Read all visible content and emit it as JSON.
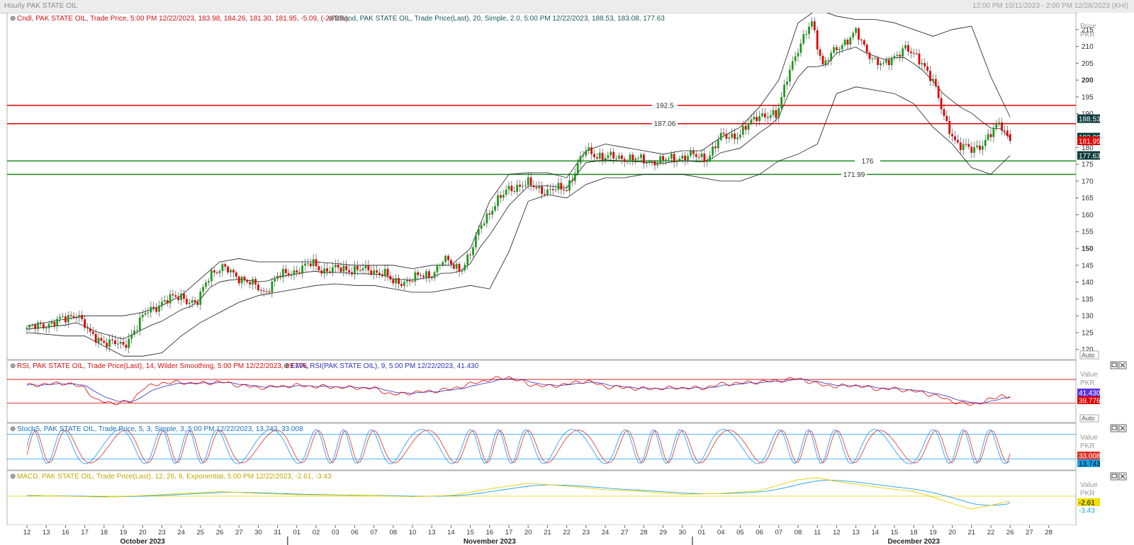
{
  "window": {
    "title": "Hourly PAK STATE OIL",
    "range_text": "12:00 PM 10/11/2023 - 2:00 PM 12/28/2023 (KHI)"
  },
  "colors": {
    "up": "#1a9c1a",
    "down": "#e00000",
    "band": "#1a1a1a",
    "resistance": "#e00000",
    "support": "#1a8c1a",
    "rsi": "#e00000",
    "rsi_ema": "#3030c0",
    "stoch_k": "#1e90ff",
    "stoch_d": "#e03020",
    "macd": "#e8d000",
    "macd_signal": "#1ca0e8"
  },
  "main_panel": {
    "legend_cndl": "Cndl, PAK STATE OIL, Trade Price, 5:00 PM 12/22/2023, 183.98, 184.26, 181.30, 181.95, -5.09, (-2.72%),",
    "legend_bband": "BBand, PAK STATE OIL, Trade Price(Last), 20, Simple, 2.0, 5:00 PM 12/22/2023, 188.53, 183.08, 177.63",
    "axis_title": "Price",
    "axis_unit": "PKR",
    "auto_label": "Auto",
    "ticks": [
      {
        "v": 215,
        "label": "215",
        "bold": false
      },
      {
        "v": 210,
        "label": "210",
        "bold": false
      },
      {
        "v": 205,
        "label": "205",
        "bold": false
      },
      {
        "v": 200,
        "label": "200",
        "bold": true
      },
      {
        "v": 195,
        "label": "195",
        "bold": false
      },
      {
        "v": 190,
        "label": "190",
        "bold": false
      },
      {
        "v": 180,
        "label": "180",
        "bold": false
      },
      {
        "v": 175,
        "label": "175",
        "bold": false
      },
      {
        "v": 170,
        "label": "170",
        "bold": false
      },
      {
        "v": 165,
        "label": "165",
        "bold": false
      },
      {
        "v": 160,
        "label": "160",
        "bold": false
      },
      {
        "v": 155,
        "label": "155",
        "bold": false
      },
      {
        "v": 150,
        "label": "150",
        "bold": true
      },
      {
        "v": 145,
        "label": "145",
        "bold": false
      },
      {
        "v": 140,
        "label": "140",
        "bold": false
      },
      {
        "v": 135,
        "label": "135",
        "bold": false
      },
      {
        "v": 130,
        "label": "130",
        "bold": false
      },
      {
        "v": 125,
        "label": "125",
        "bold": false
      },
      {
        "v": 120,
        "label": "120",
        "bold": false
      }
    ],
    "value_tags": [
      {
        "v": 188.53,
        "label": "188.53",
        "bg": "#0d3b3b",
        "fg": "#ffffff"
      },
      {
        "v": 183.08,
        "label": "183.08",
        "bg": "#0d3b3b",
        "fg": "#ffffff"
      },
      {
        "v": 181.95,
        "label": "181.95",
        "bg": "#e00000",
        "fg": "#ffffff"
      },
      {
        "v": 177.63,
        "label": "177.63",
        "bg": "#0d3b3b",
        "fg": "#ffffff"
      }
    ],
    "levels": [
      {
        "v": 192.5,
        "label": "192.5",
        "color": "#e00000"
      },
      {
        "v": 187.06,
        "label": "187.06",
        "color": "#e00000"
      },
      {
        "v": 176,
        "label": "176",
        "color": "#1a8c1a"
      },
      {
        "v": 171.99,
        "label": "171.99",
        "color": "#1a8c1a"
      }
    ]
  },
  "rsi_panel": {
    "legend_rsi": "RSI, PAK STATE OIL, Trade Price(Last), 14, Wilder Smoothing, 5:00 PM 12/22/2023, 39.776,",
    "legend_ema": "EMA, RSI(PAK STATE OIL), 9, 5:00 PM 12/22/2023, 41.430",
    "axis_title": "Value",
    "axis_unit": "PKR",
    "auto_label": "Auto",
    "tags": [
      {
        "label": "41.430",
        "bg": "#5a32e0",
        "fg": "#ffffff"
      },
      {
        "label": "39.776",
        "bg": "#e00000",
        "fg": "#ffffff"
      }
    ],
    "levels": [
      70,
      30
    ]
  },
  "stoch_panel": {
    "legend": "StochS, PAK STATE OIL, Trade Price, 5, 3, Simple, 3, 5:00 PM 12/22/2023, 13.743, 33.008",
    "axis_title": "Value",
    "axis_unit": "PKR",
    "auto_label": "Auto",
    "tags": [
      {
        "label": "33.008",
        "bg": "#e03020",
        "fg": "#ffffff"
      },
      {
        "label": "13.743",
        "bg": "#1ca0e8",
        "fg": "#000000"
      }
    ],
    "levels": [
      80,
      20
    ]
  },
  "macd_panel": {
    "legend": "MACD, PAK STATE OIL, Trade Price(Last), 12, 26, 9, Exponential, 5:00 PM 12/22/2023, -2.61, -3.43",
    "axis_title": "Value",
    "axis_unit": "PKR",
    "tags": [
      {
        "label": "-2.61",
        "bg": "#f0e000",
        "fg": "#000000"
      },
      {
        "label": "-3.43",
        "bg": "#ffffff",
        "fg": "#1ca0e8"
      }
    ]
  },
  "x_axis": {
    "day_labels": [
      "12",
      "13",
      "16",
      "17",
      "18",
      "19",
      "20",
      "23",
      "24",
      "25",
      "26",
      "27",
      "30",
      "31",
      "01",
      "02",
      "03",
      "06",
      "07",
      "08",
      "10",
      "13",
      "14",
      "15",
      "16",
      "17",
      "20",
      "21",
      "22",
      "23",
      "24",
      "27",
      "28",
      "29",
      "30",
      "01",
      "04",
      "05",
      "06",
      "07",
      "08",
      "11",
      "12",
      "13",
      "14",
      "15",
      "18",
      "19",
      "20",
      "21",
      "22",
      "26",
      "27",
      "28"
    ],
    "months": [
      {
        "label": "October 2023",
        "day_index": 6
      },
      {
        "label": "November 2023",
        "day_index": 24
      },
      {
        "label": "December 2023",
        "day_index": 46
      }
    ],
    "separators": [
      14,
      35
    ]
  },
  "chart_data": {
    "type": "candlestick",
    "title": "Hourly PAK STATE OIL",
    "ylabel": "Price (PKR)",
    "ylim": [
      117,
      220
    ],
    "x_unit": "trading day (hourly bars)",
    "categories": [
      "Oct 12",
      "Oct 13",
      "Oct 16",
      "Oct 17",
      "Oct 18",
      "Oct 19",
      "Oct 20",
      "Oct 23",
      "Oct 24",
      "Oct 25",
      "Oct 26",
      "Oct 27",
      "Oct 30",
      "Oct 31",
      "Nov 01",
      "Nov 02",
      "Nov 03",
      "Nov 06",
      "Nov 07",
      "Nov 08",
      "Nov 10",
      "Nov 13",
      "Nov 14",
      "Nov 15",
      "Nov 16",
      "Nov 17",
      "Nov 20",
      "Nov 21",
      "Nov 22",
      "Nov 23",
      "Nov 24",
      "Nov 27",
      "Nov 28",
      "Nov 29",
      "Nov 30",
      "Dec 01",
      "Dec 04",
      "Dec 05",
      "Dec 06",
      "Dec 07",
      "Dec 08",
      "Dec 11",
      "Dec 12",
      "Dec 13",
      "Dec 14",
      "Dec 15",
      "Dec 18",
      "Dec 19",
      "Dec 20",
      "Dec 21",
      "Dec 22"
    ],
    "price_path": [
      [
        0,
        126
      ],
      [
        1,
        127.5
      ],
      [
        2,
        129
      ],
      [
        2.6,
        131
      ],
      [
        3.3,
        124
      ],
      [
        4.3,
        122
      ],
      [
        5,
        121
      ],
      [
        5.6,
        126
      ],
      [
        6.2,
        131
      ],
      [
        7,
        134
      ],
      [
        8,
        136
      ],
      [
        8.8,
        133
      ],
      [
        9.5,
        143
      ],
      [
        10.2,
        144
      ],
      [
        11.2,
        141
      ],
      [
        12.3,
        137
      ],
      [
        13,
        141.5
      ],
      [
        14,
        143.5
      ],
      [
        14.8,
        145.5
      ],
      [
        15.4,
        143.5
      ],
      [
        16.5,
        144
      ],
      [
        17.5,
        143.5
      ],
      [
        18.5,
        143
      ],
      [
        19,
        139.5
      ],
      [
        20,
        141
      ],
      [
        21,
        142.5
      ],
      [
        21.6,
        146.5
      ],
      [
        22.5,
        144
      ],
      [
        23,
        148
      ],
      [
        23.6,
        158
      ],
      [
        24.3,
        163
      ],
      [
        25,
        168
      ],
      [
        26,
        169
      ],
      [
        27,
        167
      ],
      [
        28,
        168
      ],
      [
        28.6,
        175
      ],
      [
        29,
        179
      ],
      [
        30,
        177
      ],
      [
        31,
        177
      ],
      [
        32,
        176
      ],
      [
        33,
        176
      ],
      [
        33.7,
        177
      ],
      [
        34.3,
        177.5
      ],
      [
        35.3,
        177
      ],
      [
        36,
        183
      ],
      [
        37,
        184
      ],
      [
        38,
        190
      ],
      [
        38.9,
        189
      ],
      [
        39.5,
        203
      ],
      [
        40.3,
        212
      ],
      [
        40.7,
        218
      ],
      [
        41.3,
        204
      ],
      [
        41.8,
        208
      ],
      [
        42.3,
        211
      ],
      [
        43,
        214
      ],
      [
        43.5,
        209
      ],
      [
        44,
        206
      ],
      [
        44.5,
        204
      ],
      [
        45,
        207
      ],
      [
        45.5,
        210
      ],
      [
        46,
        207
      ],
      [
        46.5,
        205
      ],
      [
        47,
        200
      ],
      [
        47.6,
        188
      ],
      [
        48.3,
        181
      ],
      [
        49,
        179
      ],
      [
        49.5,
        181
      ],
      [
        50,
        184
      ],
      [
        50.5,
        187
      ],
      [
        51,
        181.95
      ]
    ],
    "bollinger": {
      "period": 20,
      "std": 2.0,
      "last_upper": 188.53,
      "last_middle": 183.08,
      "last_lower": 177.63,
      "upper": [
        [
          0,
          127
        ],
        [
          2,
          129
        ],
        [
          3,
          130
        ],
        [
          4,
          130
        ],
        [
          5,
          130
        ],
        [
          6,
          131
        ],
        [
          7,
          133
        ],
        [
          8,
          136
        ],
        [
          9,
          141
        ],
        [
          10,
          146
        ],
        [
          11,
          147
        ],
        [
          12,
          146
        ],
        [
          13,
          146
        ],
        [
          14,
          146
        ],
        [
          15,
          146
        ],
        [
          16,
          145.5
        ],
        [
          17,
          145
        ],
        [
          18,
          145
        ],
        [
          19,
          145
        ],
        [
          20,
          144
        ],
        [
          21,
          145
        ],
        [
          22,
          145
        ],
        [
          23,
          150
        ],
        [
          24,
          164
        ],
        [
          25,
          172
        ],
        [
          26,
          172.5
        ],
        [
          27,
          172.5
        ],
        [
          28,
          171
        ],
        [
          29,
          179
        ],
        [
          30,
          181
        ],
        [
          31,
          180
        ],
        [
          32,
          179
        ],
        [
          33,
          178
        ],
        [
          34,
          179
        ],
        [
          35,
          179
        ],
        [
          36,
          183
        ],
        [
          37,
          186
        ],
        [
          38,
          192
        ],
        [
          39,
          200
        ],
        [
          40,
          217
        ],
        [
          41,
          221
        ],
        [
          42,
          219
        ],
        [
          43,
          218
        ],
        [
          44,
          218
        ],
        [
          45,
          217
        ],
        [
          46,
          215
        ],
        [
          47,
          213
        ],
        [
          48,
          215
        ],
        [
          49,
          216
        ],
        [
          50,
          201
        ],
        [
          51,
          189
        ]
      ],
      "lower": [
        [
          0,
          125
        ],
        [
          2,
          124
        ],
        [
          3,
          124
        ],
        [
          4,
          121
        ],
        [
          5,
          118
        ],
        [
          6,
          118
        ],
        [
          7,
          119
        ],
        [
          8,
          124
        ],
        [
          9,
          128
        ],
        [
          10,
          131
        ],
        [
          11,
          134
        ],
        [
          12,
          136
        ],
        [
          13,
          137
        ],
        [
          14,
          138
        ],
        [
          15,
          139
        ],
        [
          16,
          139.5
        ],
        [
          17,
          139
        ],
        [
          18,
          139
        ],
        [
          19,
          138
        ],
        [
          20,
          137
        ],
        [
          21,
          137
        ],
        [
          22,
          138
        ],
        [
          23,
          139
        ],
        [
          24,
          138
        ],
        [
          25,
          149
        ],
        [
          26,
          164
        ],
        [
          27,
          166
        ],
        [
          28,
          165
        ],
        [
          29,
          169
        ],
        [
          30,
          171
        ],
        [
          31,
          171
        ],
        [
          32,
          172
        ],
        [
          33,
          172
        ],
        [
          34,
          172
        ],
        [
          35,
          171
        ],
        [
          36,
          170
        ],
        [
          37,
          170
        ],
        [
          38,
          172
        ],
        [
          39,
          176
        ],
        [
          40,
          178
        ],
        [
          41,
          181
        ],
        [
          42,
          196
        ],
        [
          43,
          198
        ],
        [
          44,
          197
        ],
        [
          45,
          196
        ],
        [
          46,
          193
        ],
        [
          47,
          186
        ],
        [
          48,
          181
        ],
        [
          49,
          174
        ],
        [
          50,
          172
        ],
        [
          51,
          177.63
        ]
      ]
    },
    "rsi": {
      "period": 14,
      "last": 39.776,
      "ema_last": 41.43,
      "levels": [
        70,
        30
      ],
      "path": [
        [
          0,
          60
        ],
        [
          1,
          62
        ],
        [
          2,
          64
        ],
        [
          3,
          56
        ],
        [
          3.6,
          34
        ],
        [
          4.5,
          30
        ],
        [
          5.4,
          32
        ],
        [
          6,
          55
        ],
        [
          7,
          64
        ],
        [
          8,
          65
        ],
        [
          9,
          63
        ],
        [
          10,
          66
        ],
        [
          11,
          60
        ],
        [
          12,
          56
        ],
        [
          13,
          58
        ],
        [
          14,
          60
        ],
        [
          15,
          58
        ],
        [
          16,
          57
        ],
        [
          17,
          56
        ],
        [
          18,
          55
        ],
        [
          19,
          44
        ],
        [
          20,
          48
        ],
        [
          21,
          50
        ],
        [
          22,
          54
        ],
        [
          23,
          62
        ],
        [
          24,
          70
        ],
        [
          25,
          74
        ],
        [
          26,
          62
        ],
        [
          27,
          58
        ],
        [
          28,
          62
        ],
        [
          29,
          68
        ],
        [
          30,
          58
        ],
        [
          31,
          56
        ],
        [
          32,
          54
        ],
        [
          33,
          55
        ],
        [
          34,
          56
        ],
        [
          35,
          55
        ],
        [
          36,
          62
        ],
        [
          37,
          64
        ],
        [
          38,
          66
        ],
        [
          39,
          68
        ],
        [
          40,
          72
        ],
        [
          41,
          62
        ],
        [
          42,
          58
        ],
        [
          43,
          60
        ],
        [
          44,
          54
        ],
        [
          45,
          54
        ],
        [
          46,
          50
        ],
        [
          47,
          44
        ],
        [
          48,
          33
        ],
        [
          49,
          27
        ],
        [
          50,
          36
        ],
        [
          50.6,
          44
        ],
        [
          51,
          39.776
        ]
      ]
    },
    "stochastic": {
      "k_period": 5,
      "smooth": 3,
      "d_period": 3,
      "last_k": 13.743,
      "last_d": 33.008,
      "levels": [
        80,
        20
      ]
    },
    "macd": {
      "fast": 12,
      "slow": 26,
      "signal": 9,
      "last_macd": -2.61,
      "last_signal": -3.43,
      "path": [
        [
          0,
          0.5
        ],
        [
          4,
          -0.5
        ],
        [
          6,
          0.3
        ],
        [
          8,
          1.5
        ],
        [
          10,
          2.5
        ],
        [
          12,
          1.5
        ],
        [
          14,
          0.8
        ],
        [
          16,
          0.5
        ],
        [
          18,
          0.3
        ],
        [
          20,
          -0.3
        ],
        [
          22,
          0.4
        ],
        [
          24,
          4
        ],
        [
          26,
          7
        ],
        [
          28,
          5.5
        ],
        [
          30,
          3.5
        ],
        [
          32,
          2.5
        ],
        [
          34,
          1
        ],
        [
          36,
          1.5
        ],
        [
          38,
          3
        ],
        [
          40,
          9
        ],
        [
          41,
          10
        ],
        [
          42,
          8
        ],
        [
          44,
          5
        ],
        [
          46,
          2.5
        ],
        [
          47,
          -0.5
        ],
        [
          48,
          -4
        ],
        [
          49,
          -7
        ],
        [
          50,
          -5
        ],
        [
          51,
          -2.61
        ]
      ]
    }
  }
}
